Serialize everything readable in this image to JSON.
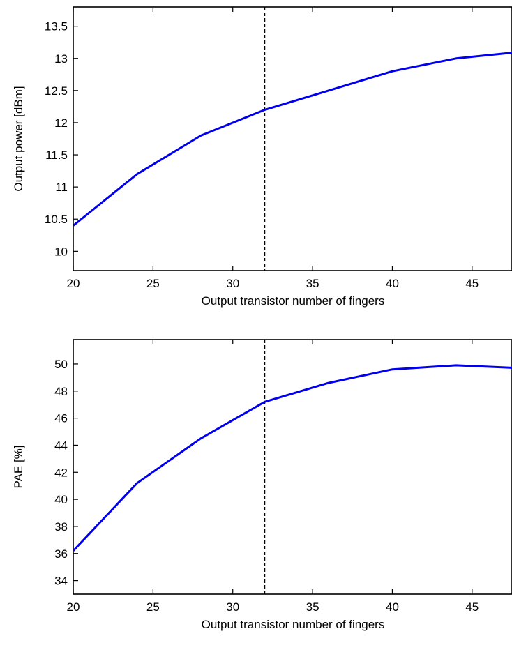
{
  "chart_data": [
    {
      "type": "line",
      "xlabel": "Output transistor number of fingers",
      "ylabel": "Output power [dBm]",
      "xlim": [
        20,
        47.5
      ],
      "ylim": [
        9.7,
        13.8
      ],
      "xticks": [
        20,
        25,
        30,
        35,
        40,
        45
      ],
      "xtick_labels": [
        "20",
        "25",
        "30",
        "35",
        "40",
        "45"
      ],
      "yticks": [
        10,
        10.5,
        11,
        11.5,
        12,
        12.5,
        13,
        13.5
      ],
      "ytick_labels": [
        "10",
        "10.5",
        "11",
        "11.5",
        "12",
        "12.5",
        "13",
        "13.5"
      ],
      "vline_x": 32,
      "series": [
        {
          "color": "#0000ee",
          "x": [
            20,
            24,
            28,
            32,
            36,
            40,
            44,
            48
          ],
          "y": [
            10.4,
            11.2,
            11.8,
            12.2,
            12.5,
            12.8,
            13.0,
            13.1
          ]
        }
      ]
    },
    {
      "type": "line",
      "xlabel": "Output transistor number of fingers",
      "ylabel": "PAE [%]",
      "xlim": [
        20,
        47.5
      ],
      "ylim": [
        33,
        51.8
      ],
      "xticks": [
        20,
        25,
        30,
        35,
        40,
        45
      ],
      "xtick_labels": [
        "20",
        "25",
        "30",
        "35",
        "40",
        "45"
      ],
      "yticks": [
        34,
        36,
        38,
        40,
        42,
        44,
        46,
        48,
        50
      ],
      "ytick_labels": [
        "34",
        "36",
        "38",
        "40",
        "42",
        "44",
        "46",
        "48",
        "50"
      ],
      "vline_x": 32,
      "series": [
        {
          "color": "#0000ee",
          "x": [
            20,
            24,
            28,
            32,
            36,
            40,
            44,
            48
          ],
          "y": [
            36.2,
            41.2,
            44.5,
            47.2,
            48.6,
            49.6,
            49.9,
            49.7
          ]
        }
      ]
    }
  ]
}
